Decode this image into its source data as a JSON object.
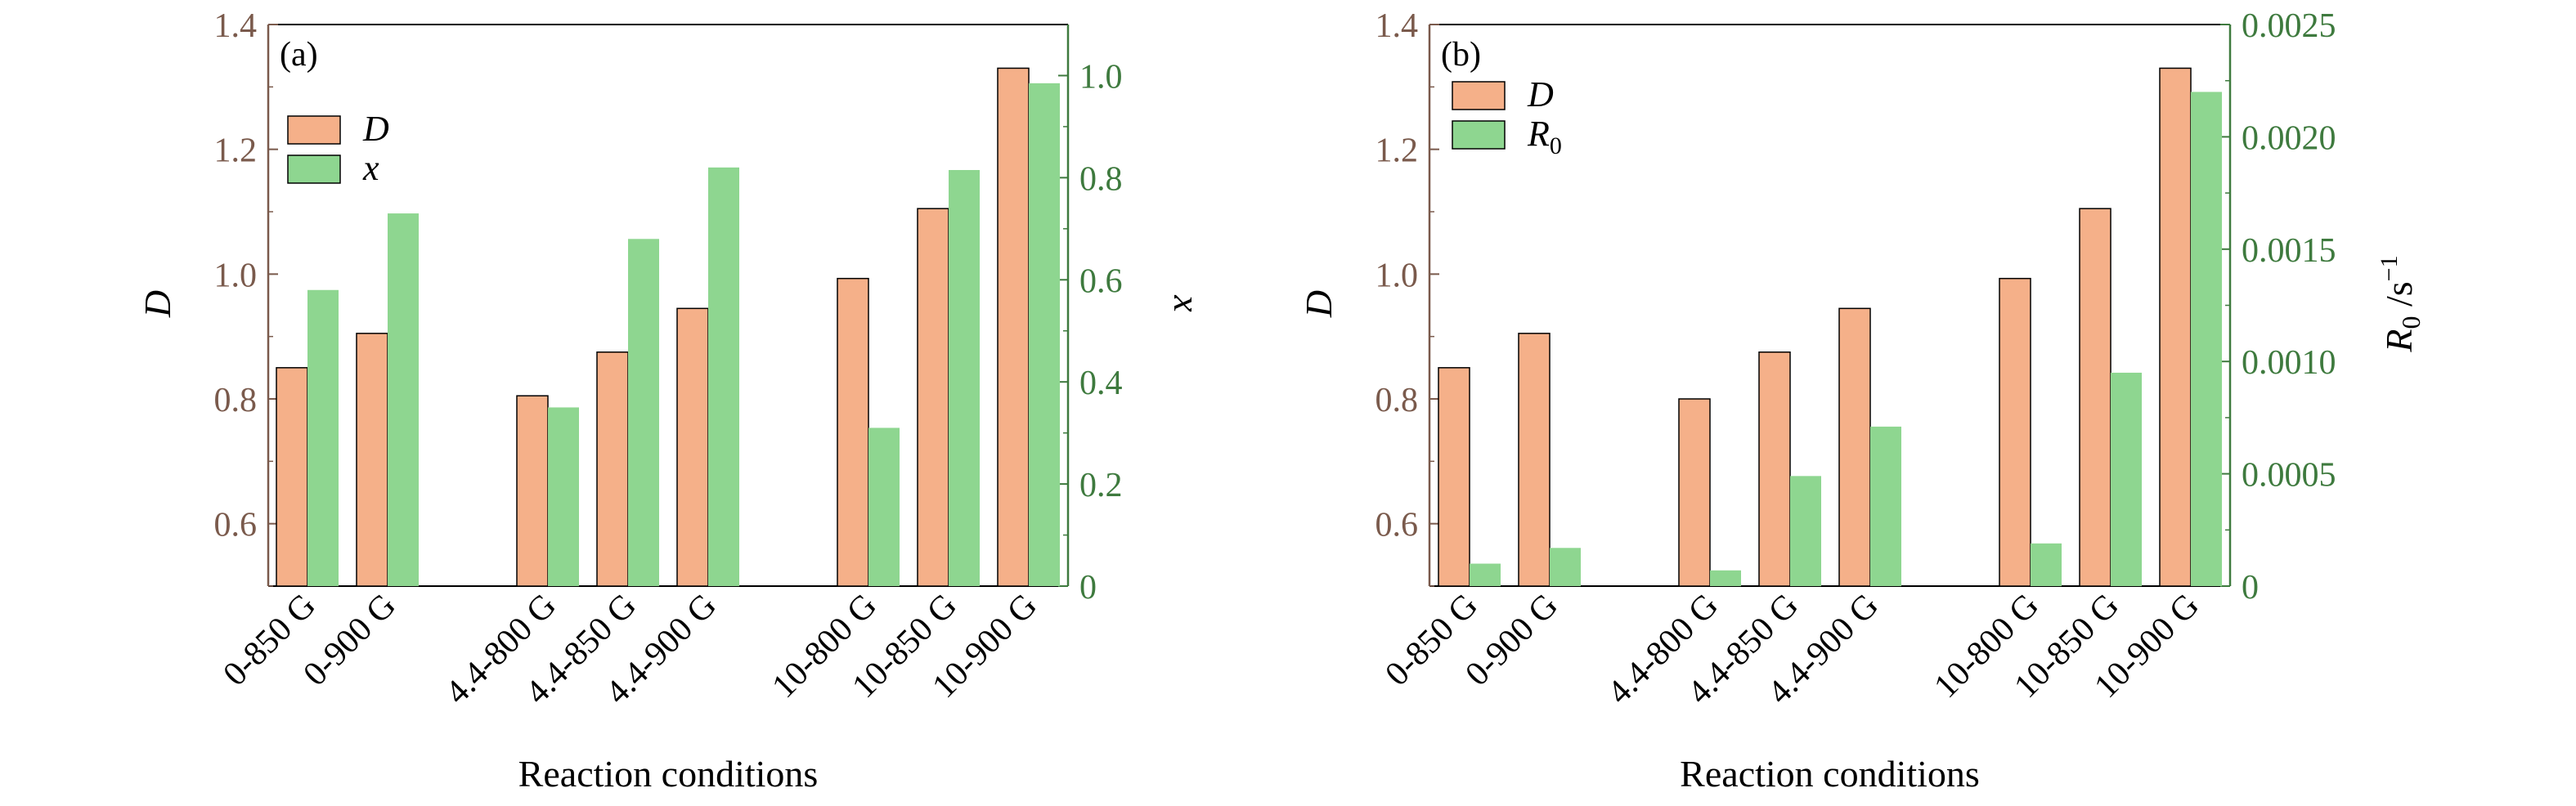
{
  "colors": {
    "D_fill": "#F5B089",
    "second_fill": "#8ED690",
    "bar_stroke": "#000000",
    "left_axis": "#7A5A4C",
    "right_axis": "#3E7A3E"
  },
  "chart_data": [
    {
      "type": "bar",
      "panel_label": "(a)",
      "xlabel": "Reaction conditions",
      "ylabel": "D",
      "y2label": "x",
      "ylim": [
        0.5,
        1.4
      ],
      "y2lim": [
        0,
        1.1
      ],
      "yticks": [
        "0.6",
        "0.8",
        "1.0",
        "1.2",
        "1.4"
      ],
      "y2ticks": [
        "0",
        "0.2",
        "0.4",
        "0.6",
        "0.8",
        "1.0"
      ],
      "groups": [
        [
          "0-850 G",
          "0-900 G"
        ],
        [
          "4.4-800 G",
          "4.4-850 G",
          "4.4-900 G"
        ],
        [
          "10-800 G",
          "10-850 G",
          "10-900 G"
        ]
      ],
      "categories": [
        "0-850 G",
        "0-900 G",
        "4.4-800 G",
        "4.4-850 G",
        "4.4-900 G",
        "10-800 G",
        "10-850 G",
        "10-900 G"
      ],
      "series": [
        {
          "name": "D",
          "axis": "left",
          "values": [
            0.85,
            0.905,
            0.805,
            0.875,
            0.945,
            0.993,
            1.105,
            1.33
          ]
        },
        {
          "name": "x",
          "axis": "right",
          "values": [
            0.58,
            0.73,
            0.35,
            0.68,
            0.82,
            0.31,
            0.815,
            0.985
          ]
        }
      ],
      "legend": [
        "D",
        "x"
      ],
      "legend_position": "top-left"
    },
    {
      "type": "bar",
      "panel_label": "(b)",
      "xlabel": "Reaction conditions",
      "ylabel": "D",
      "y2label": "R0 /s−1",
      "ylim": [
        0.5,
        1.4
      ],
      "y2lim": [
        0,
        0.0025
      ],
      "yticks": [
        "0.6",
        "0.8",
        "1.0",
        "1.2",
        "1.4"
      ],
      "y2ticks": [
        "0",
        "0.0005",
        "0.0010",
        "0.0015",
        "0.0020",
        "0.0025"
      ],
      "groups": [
        [
          "0-850 G",
          "0-900 G"
        ],
        [
          "4.4-800 G",
          "4.4-850 G",
          "4.4-900 G"
        ],
        [
          "10-800 G",
          "10-850 G",
          "10-900 G"
        ]
      ],
      "categories": [
        "0-850 G",
        "0-900 G",
        "4.4-800 G",
        "4.4-850 G",
        "4.4-900 G",
        "10-800 G",
        "10-850 G",
        "10-900 G"
      ],
      "series": [
        {
          "name": "D",
          "axis": "left",
          "values": [
            0.85,
            0.905,
            0.8,
            0.875,
            0.945,
            0.993,
            1.105,
            1.33
          ]
        },
        {
          "name": "R0",
          "axis": "right",
          "values": [
            0.0001,
            0.00017,
            7e-05,
            0.00049,
            0.00071,
            0.00019,
            0.00095,
            0.0022
          ]
        }
      ],
      "legend": [
        "D",
        "R0"
      ],
      "legend_position": "top-left"
    }
  ]
}
